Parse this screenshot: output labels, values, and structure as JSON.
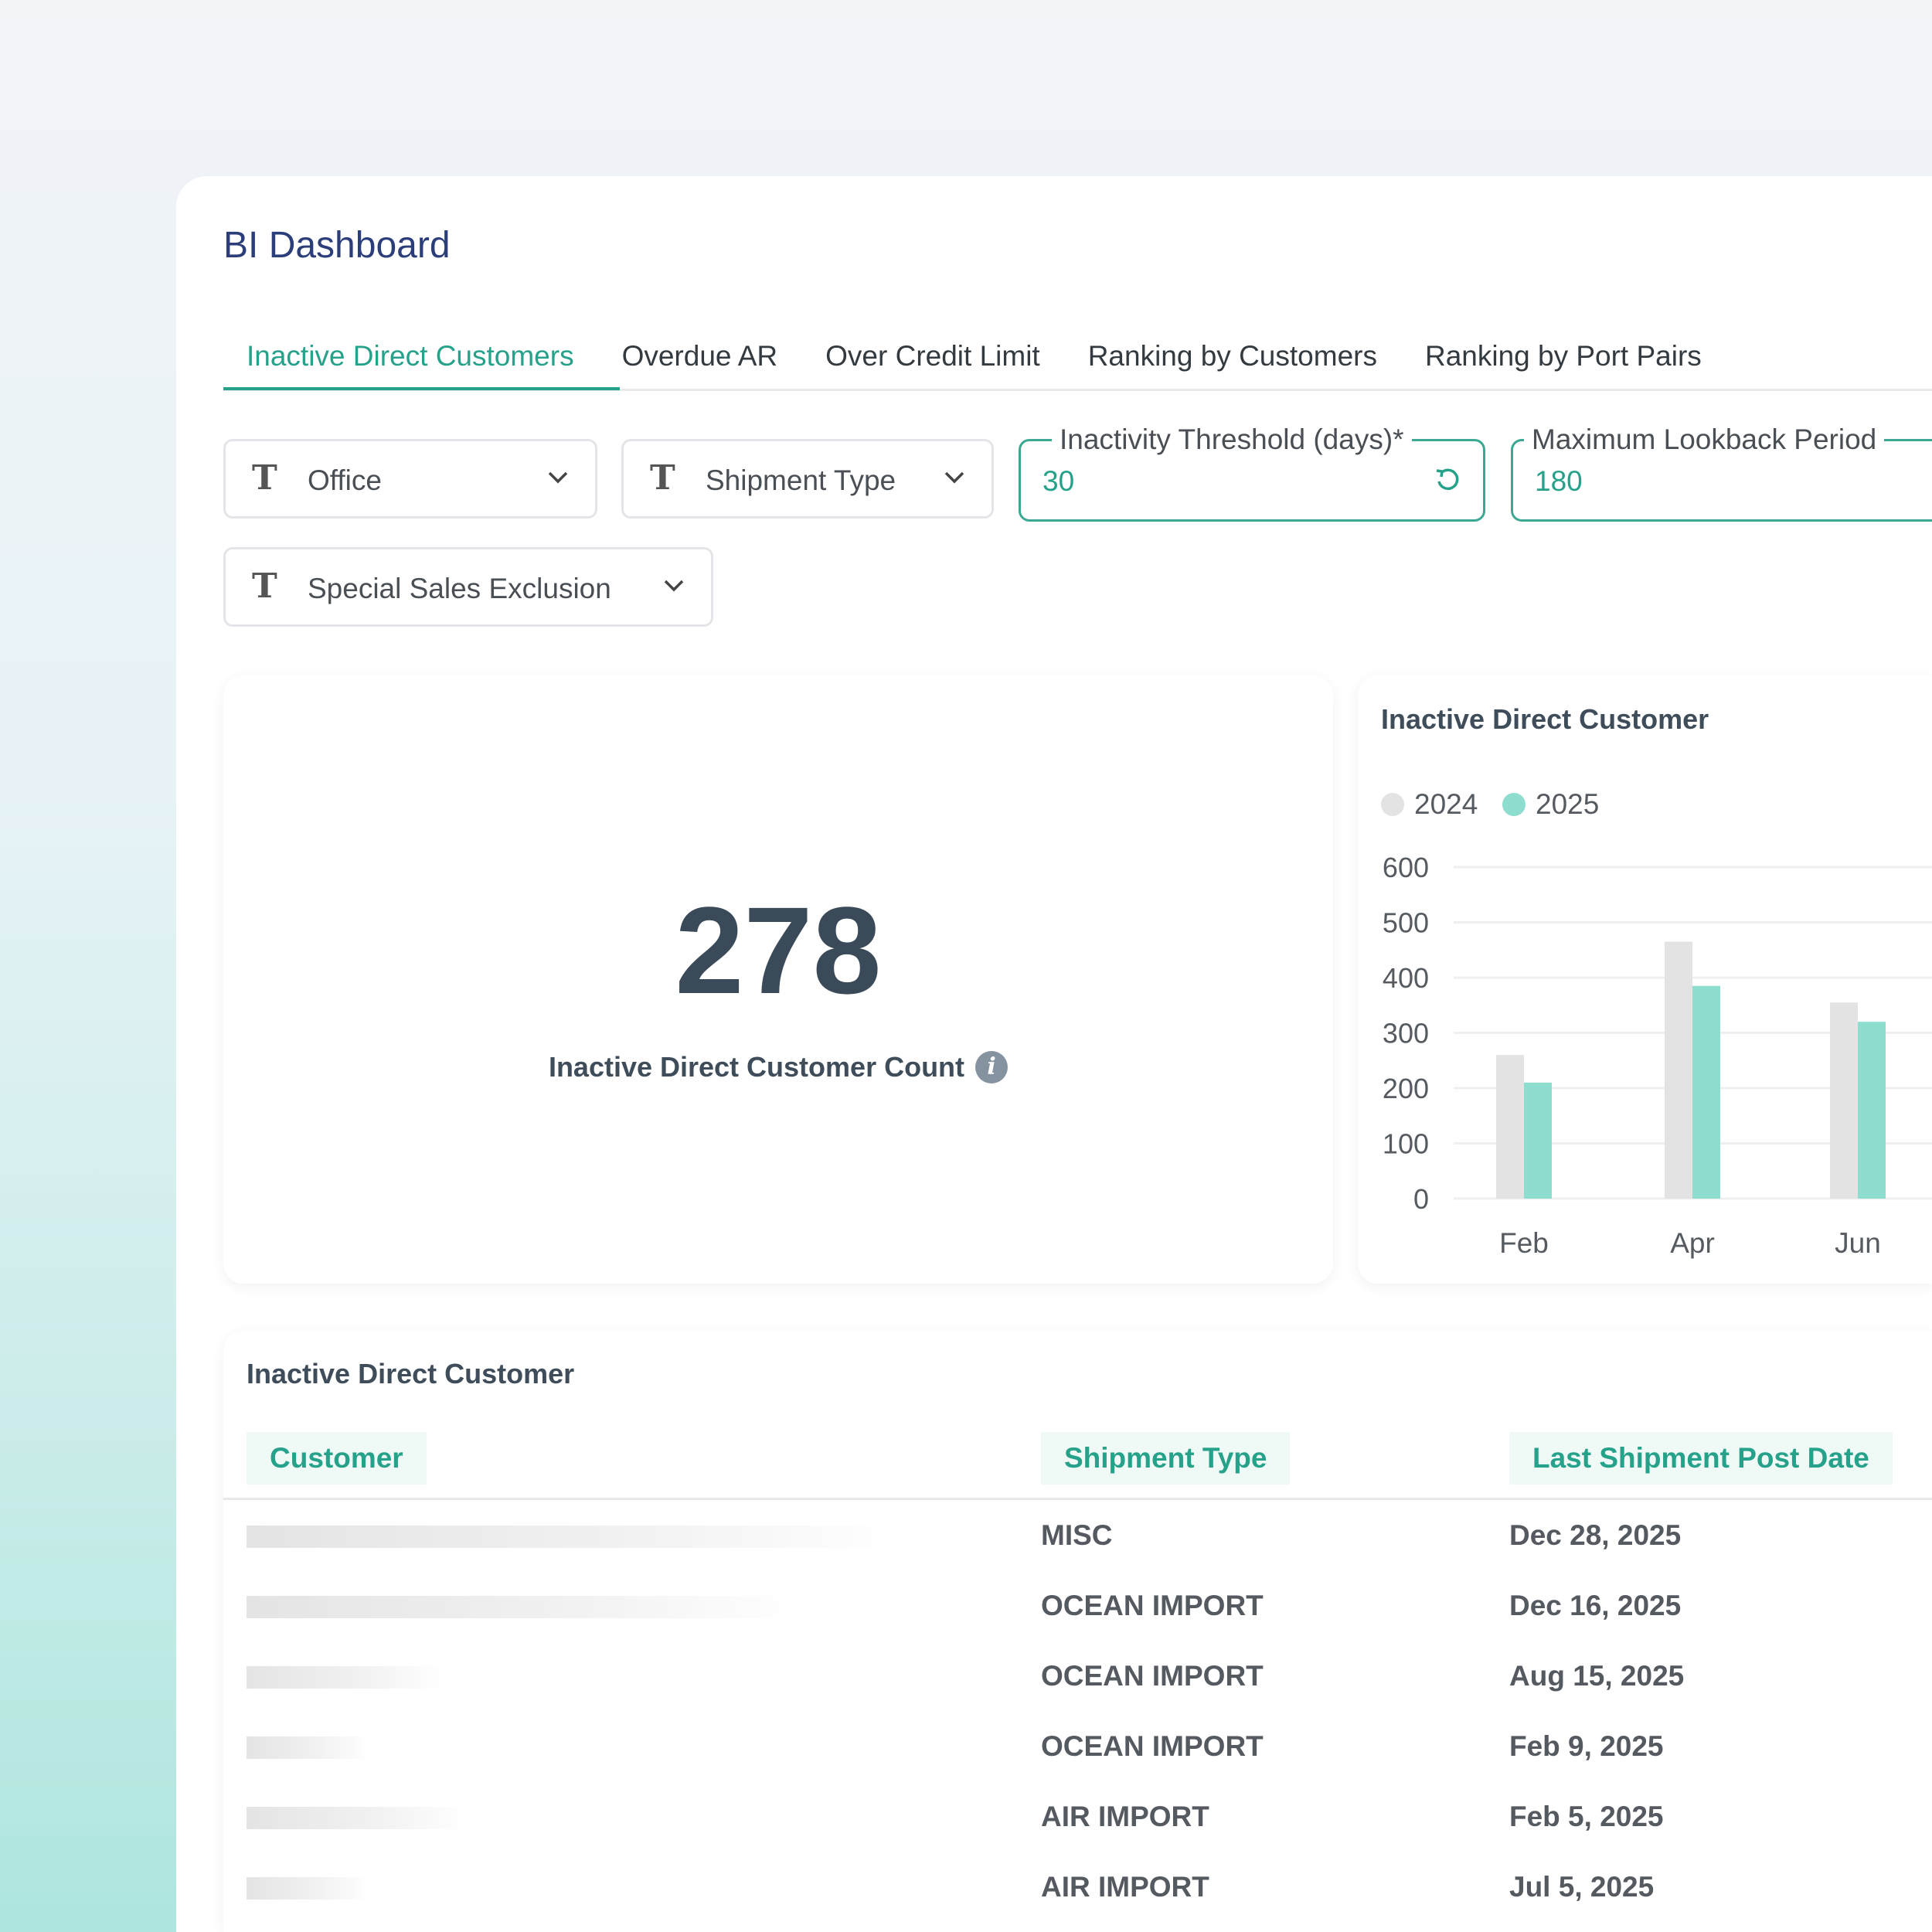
{
  "header": {
    "title": "BI Dashboard"
  },
  "tabs": [
    {
      "label": "Inactive Direct Customers",
      "active": true
    },
    {
      "label": "Overdue AR",
      "active": false
    },
    {
      "label": "Over Credit Limit",
      "active": false
    },
    {
      "label": "Ranking by Customers",
      "active": false
    },
    {
      "label": "Ranking by Port Pairs",
      "active": false
    }
  ],
  "filters": {
    "office": {
      "label": "Office",
      "icon": "text-type-icon"
    },
    "shipment_type": {
      "label": "Shipment Type",
      "icon": "text-type-icon"
    },
    "special_sales_exclusion": {
      "label": "Special Sales Exclusion",
      "icon": "text-type-icon"
    },
    "inactivity_threshold": {
      "label": "Inactivity Threshold (days)*",
      "value": "30",
      "icon": "reset-icon"
    },
    "max_lookback": {
      "label": "Maximum Lookback Period",
      "value": "180"
    }
  },
  "kpi": {
    "value": "278",
    "label": "Inactive Direct Customer Count",
    "icon": "info-icon"
  },
  "chart_data": {
    "type": "bar",
    "title": "Inactive Direct Customer",
    "categories": [
      "Feb",
      "Apr",
      "Jun"
    ],
    "series": [
      {
        "name": "2024",
        "color": "#e3e3e3",
        "values": [
          260,
          465,
          355
        ]
      },
      {
        "name": "2025",
        "color": "#8ddece",
        "values": [
          210,
          385,
          320
        ]
      }
    ],
    "yticks": [
      "0",
      "100",
      "200",
      "300",
      "400",
      "500",
      "600"
    ],
    "ylim": [
      0,
      600
    ],
    "grid": true,
    "legend": "top-left"
  },
  "table": {
    "title": "Inactive Direct Customer",
    "columns": [
      "Customer",
      "Shipment Type",
      "Last Shipment Post Date"
    ],
    "rows": [
      {
        "shipment_type": "MISC",
        "date": "Dec 28, 2025"
      },
      {
        "shipment_type": "OCEAN IMPORT",
        "date": "Dec 16, 2025"
      },
      {
        "shipment_type": "OCEAN IMPORT",
        "date": "Aug 15, 2025"
      },
      {
        "shipment_type": "OCEAN IMPORT",
        "date": "Feb 9, 2025"
      },
      {
        "shipment_type": "AIR IMPORT",
        "date": "Feb 5, 2025"
      },
      {
        "shipment_type": "AIR IMPORT",
        "date": "Jul 5, 2025"
      }
    ]
  },
  "colors": {
    "accent": "#26a18a",
    "title": "#2c3e7a",
    "text": "#3f4d5a"
  }
}
